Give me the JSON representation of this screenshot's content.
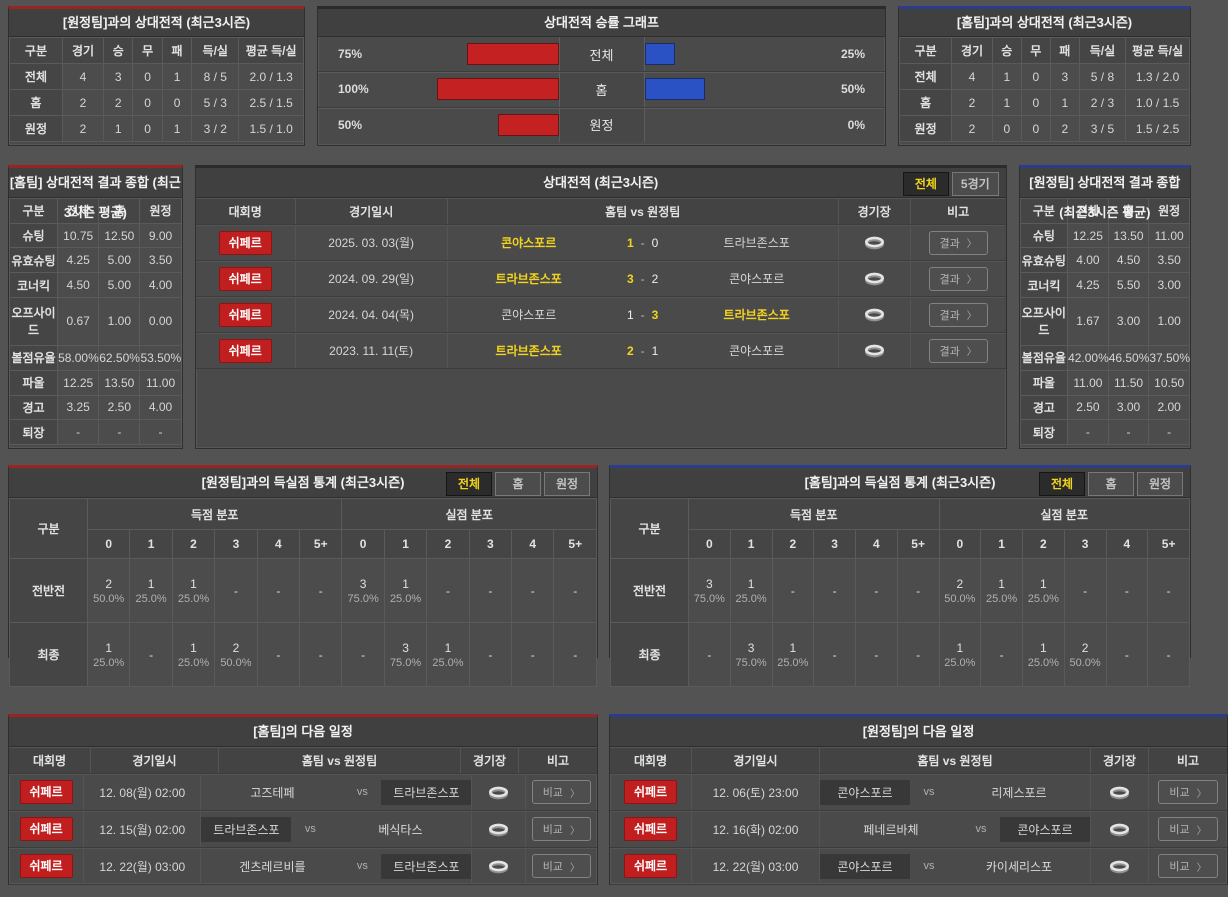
{
  "ui": {
    "vs": "vs",
    "dash": "-",
    "chevron": "〉"
  },
  "colors": {
    "accent_red": "#992424",
    "accent_blue": "#2c3c8c",
    "bar_red": "#c42222",
    "bar_blue": "#2a52c4",
    "badge_red": "#c11f1f",
    "highlight_yellow": "#f2d41c"
  },
  "chart_data": {
    "type": "bar",
    "title": "상대전적 승률 그래프",
    "categories": [
      "전체",
      "홈",
      "원정"
    ],
    "series": [
      {
        "name": "red-bar-left",
        "color": "#c42222",
        "values": [
          75,
          100,
          50
        ]
      },
      {
        "name": "blue-bar-right",
        "color": "#2a52c4",
        "values": [
          25,
          50,
          0
        ]
      }
    ],
    "value_labels": {
      "left": [
        "75%",
        "100%",
        "50%"
      ],
      "right": [
        "25%",
        "50%",
        "0%"
      ]
    },
    "xlim": [
      0,
      100
    ],
    "legend": "none",
    "orientation": "horizontal-mirrored"
  },
  "panels": {
    "away_h2h": {
      "title": "[원정팀]과의 상대전적 (최근3시즌)",
      "headers": [
        "구분",
        "경기",
        "승",
        "무",
        "패",
        "득/실",
        "평균 득/실"
      ],
      "rows": [
        [
          "전체",
          "4",
          "3",
          "0",
          "1",
          "8 / 5",
          "2.0 / 1.3"
        ],
        [
          "홈",
          "2",
          "2",
          "0",
          "0",
          "5 / 3",
          "2.5 / 1.5"
        ],
        [
          "원정",
          "2",
          "1",
          "0",
          "1",
          "3 / 2",
          "1.5 / 1.0"
        ]
      ]
    },
    "home_h2h": {
      "title": "[홈팀]과의 상대전적 (최근3시즌)",
      "headers": [
        "구분",
        "경기",
        "승",
        "무",
        "패",
        "득/실",
        "평균 득/실"
      ],
      "rows": [
        [
          "전체",
          "4",
          "1",
          "0",
          "3",
          "5 / 8",
          "1.3 / 2.0"
        ],
        [
          "홈",
          "2",
          "1",
          "0",
          "1",
          "2 / 3",
          "1.0 / 1.5"
        ],
        [
          "원정",
          "2",
          "0",
          "0",
          "2",
          "3 / 5",
          "1.5 / 2.5"
        ]
      ]
    },
    "home_summary": {
      "title": "[홈팀] 상대전적 결과 종합 (최근3시즌 평균)",
      "headers": [
        "구분",
        "전체",
        "홈",
        "원정"
      ],
      "rows": [
        [
          "슈팅",
          "10.75",
          "12.50",
          "9.00"
        ],
        [
          "유효슈팅",
          "4.25",
          "5.00",
          "3.50"
        ],
        [
          "코너킥",
          "4.50",
          "5.00",
          "4.00"
        ],
        [
          "오프사이드",
          "0.67",
          "1.00",
          "0.00"
        ],
        [
          "볼점유율",
          "58.00%",
          "62.50%",
          "53.50%"
        ],
        [
          "파울",
          "12.25",
          "13.50",
          "11.00"
        ],
        [
          "경고",
          "3.25",
          "2.50",
          "4.00"
        ],
        [
          "퇴장",
          "-",
          "-",
          "-"
        ]
      ]
    },
    "away_summary": {
      "title": "[원정팀] 상대전적 결과 종합 (최근3시즌 평균)",
      "headers": [
        "구분",
        "전체",
        "홈",
        "원정"
      ],
      "rows": [
        [
          "슈팅",
          "12.25",
          "13.50",
          "11.00"
        ],
        [
          "유효슈팅",
          "4.00",
          "4.50",
          "3.50"
        ],
        [
          "코너킥",
          "4.25",
          "5.50",
          "3.00"
        ],
        [
          "오프사이드",
          "1.67",
          "3.00",
          "1.00"
        ],
        [
          "볼점유율",
          "42.00%",
          "46.50%",
          "37.50%"
        ],
        [
          "파울",
          "11.00",
          "11.50",
          "10.50"
        ],
        [
          "경고",
          "2.50",
          "3.00",
          "2.00"
        ],
        [
          "퇴장",
          "-",
          "-",
          "-"
        ]
      ]
    },
    "h2h_matches": {
      "title": "상대전적 (최근3시즌)",
      "tabs": [
        "전체",
        "5경기"
      ],
      "active_tab": 0,
      "headers": [
        "대회명",
        "경기일시",
        "홈팀  vs  원정팀",
        "경기장",
        "비고"
      ],
      "button_label": "결과",
      "rows": [
        {
          "league": "쉬페르",
          "date": "2025. 03. 03(월)",
          "home": "콘야스포르",
          "home_score": "1",
          "away_score": "0",
          "away": "트라브존스포",
          "winner": "home"
        },
        {
          "league": "쉬페르",
          "date": "2024. 09. 29(일)",
          "home": "트라브존스포",
          "home_score": "3",
          "away_score": "2",
          "away": "콘야스포르",
          "winner": "home"
        },
        {
          "league": "쉬페르",
          "date": "2024. 04. 04(목)",
          "home": "콘야스포르",
          "home_score": "1",
          "away_score": "3",
          "away": "트라브존스포",
          "winner": "away"
        },
        {
          "league": "쉬페르",
          "date": "2023. 11. 11(토)",
          "home": "트라브존스포",
          "home_score": "2",
          "away_score": "1",
          "away": "콘야스포르",
          "winner": "home"
        }
      ]
    },
    "away_goal_stats": {
      "title": "[원정팀]과의 득실점 통계 (최근3시즌)",
      "tabs": [
        "전체",
        "홈",
        "원정"
      ],
      "active_tab": 0,
      "col_header": "구분",
      "group_headers": [
        "득점 분포",
        "실점 분포"
      ],
      "cols": [
        "0",
        "1",
        "2",
        "3",
        "4",
        "5+"
      ],
      "rows": [
        {
          "label": "전반전",
          "scored": [
            {
              "n": "2",
              "pct": "50.0%"
            },
            {
              "n": "1",
              "pct": "25.0%"
            },
            {
              "n": "1",
              "pct": "25.0%"
            },
            "-",
            "-",
            "-"
          ],
          "conceded": [
            {
              "n": "3",
              "pct": "75.0%"
            },
            {
              "n": "1",
              "pct": "25.0%"
            },
            "-",
            "-",
            "-",
            "-"
          ]
        },
        {
          "label": "최종",
          "scored": [
            {
              "n": "1",
              "pct": "25.0%"
            },
            "-",
            {
              "n": "1",
              "pct": "25.0%"
            },
            {
              "n": "2",
              "pct": "50.0%"
            },
            "-",
            "-"
          ],
          "conceded": [
            "-",
            {
              "n": "3",
              "pct": "75.0%"
            },
            {
              "n": "1",
              "pct": "25.0%"
            },
            "-",
            "-",
            "-"
          ]
        }
      ]
    },
    "home_goal_stats": {
      "title": "[홈팀]과의 득실점 통계 (최근3시즌)",
      "tabs": [
        "전체",
        "홈",
        "원정"
      ],
      "active_tab": 0,
      "col_header": "구분",
      "group_headers": [
        "득점 분포",
        "실점 분포"
      ],
      "cols": [
        "0",
        "1",
        "2",
        "3",
        "4",
        "5+"
      ],
      "rows": [
        {
          "label": "전반전",
          "scored": [
            {
              "n": "3",
              "pct": "75.0%"
            },
            {
              "n": "1",
              "pct": "25.0%"
            },
            "-",
            "-",
            "-",
            "-"
          ],
          "conceded": [
            {
              "n": "2",
              "pct": "50.0%"
            },
            {
              "n": "1",
              "pct": "25.0%"
            },
            {
              "n": "1",
              "pct": "25.0%"
            },
            "-",
            "-",
            "-"
          ]
        },
        {
          "label": "최종",
          "scored": [
            "-",
            {
              "n": "3",
              "pct": "75.0%"
            },
            {
              "n": "1",
              "pct": "25.0%"
            },
            "-",
            "-",
            "-"
          ],
          "conceded": [
            {
              "n": "1",
              "pct": "25.0%"
            },
            "-",
            {
              "n": "1",
              "pct": "25.0%"
            },
            {
              "n": "2",
              "pct": "50.0%"
            },
            "-",
            "-"
          ]
        }
      ]
    },
    "home_schedule": {
      "title": "[홈팀]의 다음 일정",
      "headers": [
        "대회명",
        "경기일시",
        "홈팀  vs  원정팀",
        "경기장",
        "비고"
      ],
      "button_label": "비교",
      "rows": [
        {
          "league": "쉬페르",
          "date": "12. 08(월) 02:00",
          "home": "고즈테페",
          "away": "트라브존스포",
          "highlight": "away"
        },
        {
          "league": "쉬페르",
          "date": "12. 15(월) 02:00",
          "home": "트라브존스포",
          "away": "베식타스",
          "highlight": "home"
        },
        {
          "league": "쉬페르",
          "date": "12. 22(월) 03:00",
          "home": "겐츠레르비를",
          "away": "트라브존스포",
          "highlight": "away"
        }
      ]
    },
    "away_schedule": {
      "title": "[원정팀]의 다음 일정",
      "headers": [
        "대회명",
        "경기일시",
        "홈팀  vs  원정팀",
        "경기장",
        "비고"
      ],
      "button_label": "비교",
      "rows": [
        {
          "league": "쉬페르",
          "date": "12. 06(토) 23:00",
          "home": "콘야스포르",
          "away": "리제스포르",
          "highlight": "home"
        },
        {
          "league": "쉬페르",
          "date": "12. 16(화) 02:00",
          "home": "페네르바체",
          "away": "콘야스포르",
          "highlight": "away"
        },
        {
          "league": "쉬페르",
          "date": "12. 22(월) 03:00",
          "home": "콘야스포르",
          "away": "카이세리스포",
          "highlight": "home"
        }
      ]
    }
  }
}
